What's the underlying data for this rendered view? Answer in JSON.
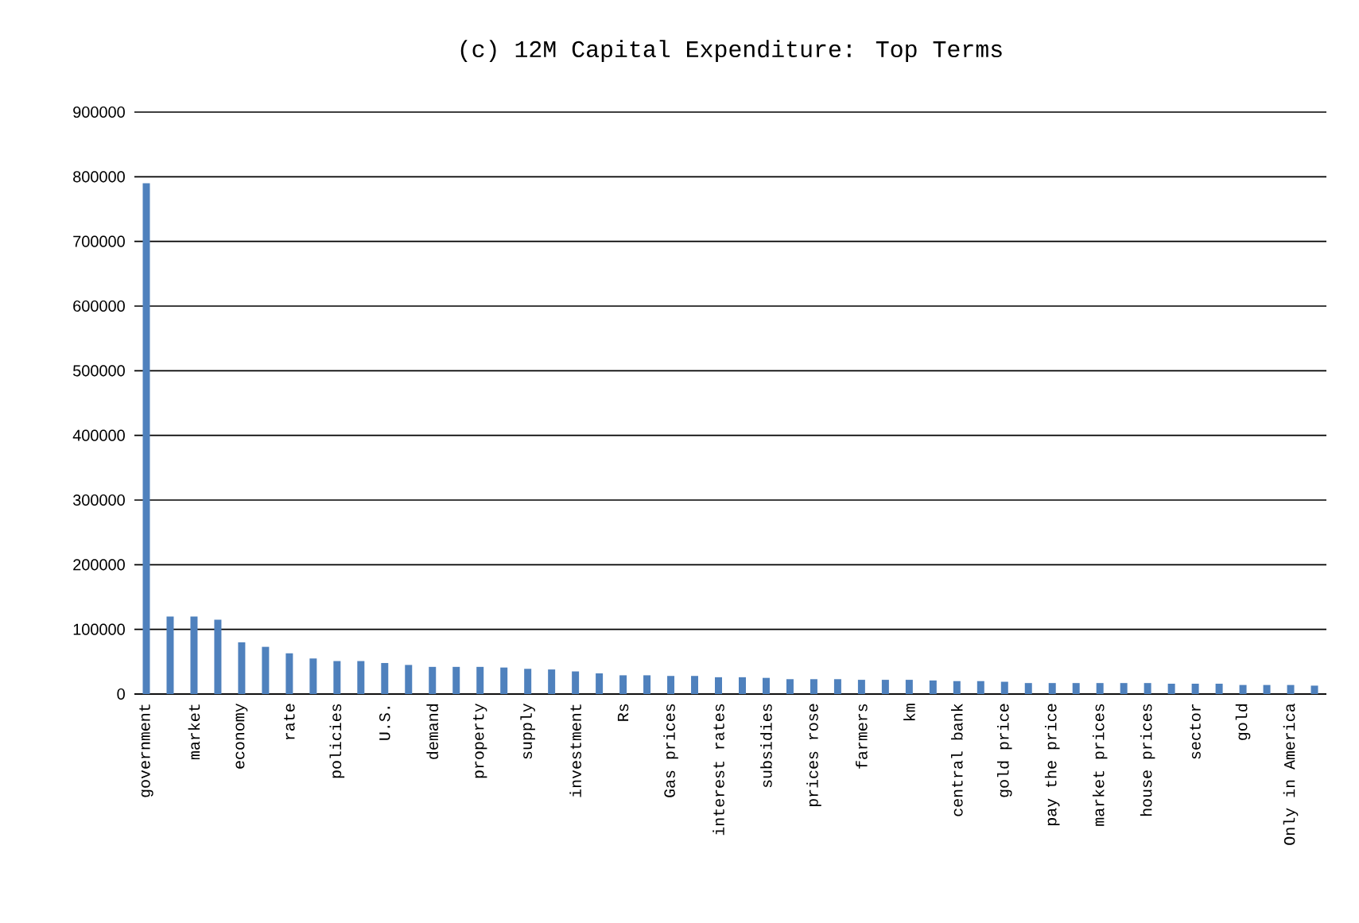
{
  "chart_data": {
    "type": "bar",
    "title": "(c) 12M Capital Expenditure: Top Terms",
    "categories": [
      "government",
      null,
      "market",
      null,
      "economy",
      null,
      "rate",
      null,
      "policies",
      null,
      "U.S.",
      null,
      "demand",
      null,
      "property",
      null,
      "supply",
      null,
      "investment",
      null,
      "Rs",
      null,
      "Gas prices",
      null,
      "interest rates",
      null,
      "subsidies",
      null,
      "prices rose",
      null,
      "farmers",
      null,
      "km",
      null,
      "central bank",
      null,
      "gold price",
      null,
      "pay the price",
      null,
      "market prices",
      null,
      "house prices",
      null,
      "sector",
      null,
      "gold",
      null,
      "Only in America",
      null
    ],
    "values": [
      790000,
      120000,
      120000,
      115000,
      80000,
      73000,
      63000,
      55000,
      51000,
      51000,
      48000,
      45000,
      42000,
      42000,
      42000,
      41000,
      39000,
      38000,
      35000,
      32000,
      29000,
      29000,
      28000,
      28000,
      26000,
      26000,
      25000,
      23000,
      23000,
      23000,
      22000,
      22000,
      22000,
      21000,
      20000,
      20000,
      19000,
      17000,
      17000,
      17000,
      17000,
      17000,
      17000,
      16000,
      16000,
      16000,
      14000,
      14000,
      14000,
      13000
    ],
    "color": "#4f81bd",
    "ylim": [
      0,
      900000
    ],
    "yticks": [
      0,
      100000,
      200000,
      300000,
      400000,
      500000,
      600000,
      700000,
      800000,
      900000
    ],
    "grid": "y"
  }
}
